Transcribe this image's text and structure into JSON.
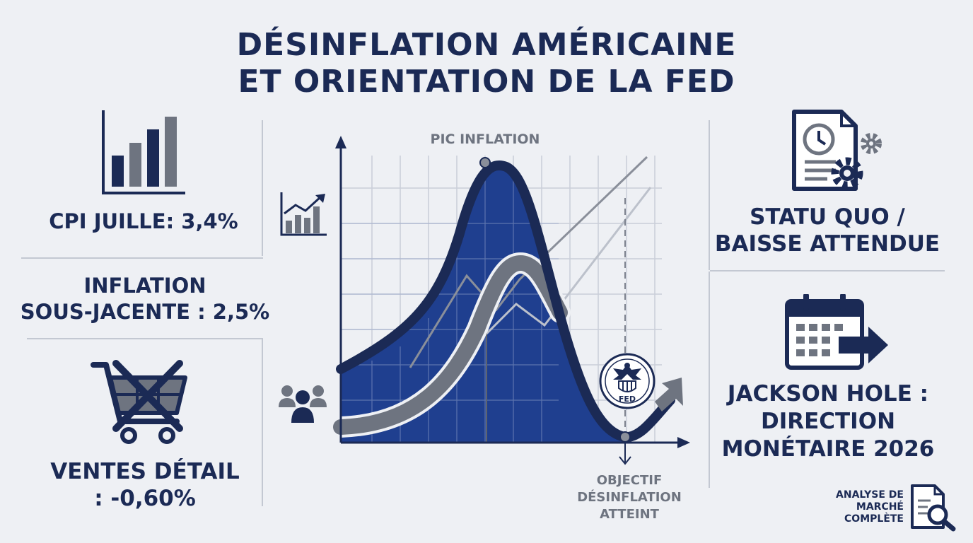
{
  "title": {
    "line1": "DÉSINFLATION AMÉRICAINE",
    "line2": "ET ORIENTATION DE LA FED"
  },
  "left": {
    "cpi": "CPI JUILLE: 3,4%",
    "core_line1": "INFLATION",
    "core_line2": "SOUS-JACENTE : 2,5%",
    "retail_line1": "VENTES DÉTAIL",
    "retail_line2": ": -0,60%"
  },
  "chart": {
    "peak_label": "PIC INFLATION",
    "target_line1": "OBJECTIF",
    "target_line2": "DÉSINFLATION",
    "target_line3": "ATTEINT",
    "seal_text": "FED"
  },
  "right": {
    "fed_line1": "STATU QUO /",
    "fed_line2": "BAISSE ATTENDUE",
    "jh_line1": "JACKSON HOLE :",
    "jh_line2": "DIRECTION",
    "jh_line3": "MONÉTAIRE 2026"
  },
  "footer": {
    "line1": "ANALYSE DE",
    "line2": "MARCHÉ",
    "line3": "COMPLÈTE"
  },
  "colors": {
    "navy": "#1b2a55",
    "blue": "#1f3f8f",
    "gray": "#6e7480",
    "light_gray": "#c3c8d2",
    "background": "#eef0f4"
  },
  "icons": [
    "bar-chart-icon",
    "trend-chart-icon",
    "shopping-cart-crossed-icon",
    "people-icon",
    "document-clock-gear-icon",
    "calendar-arrow-icon",
    "fed-seal-icon",
    "document-magnifier-icon"
  ]
}
